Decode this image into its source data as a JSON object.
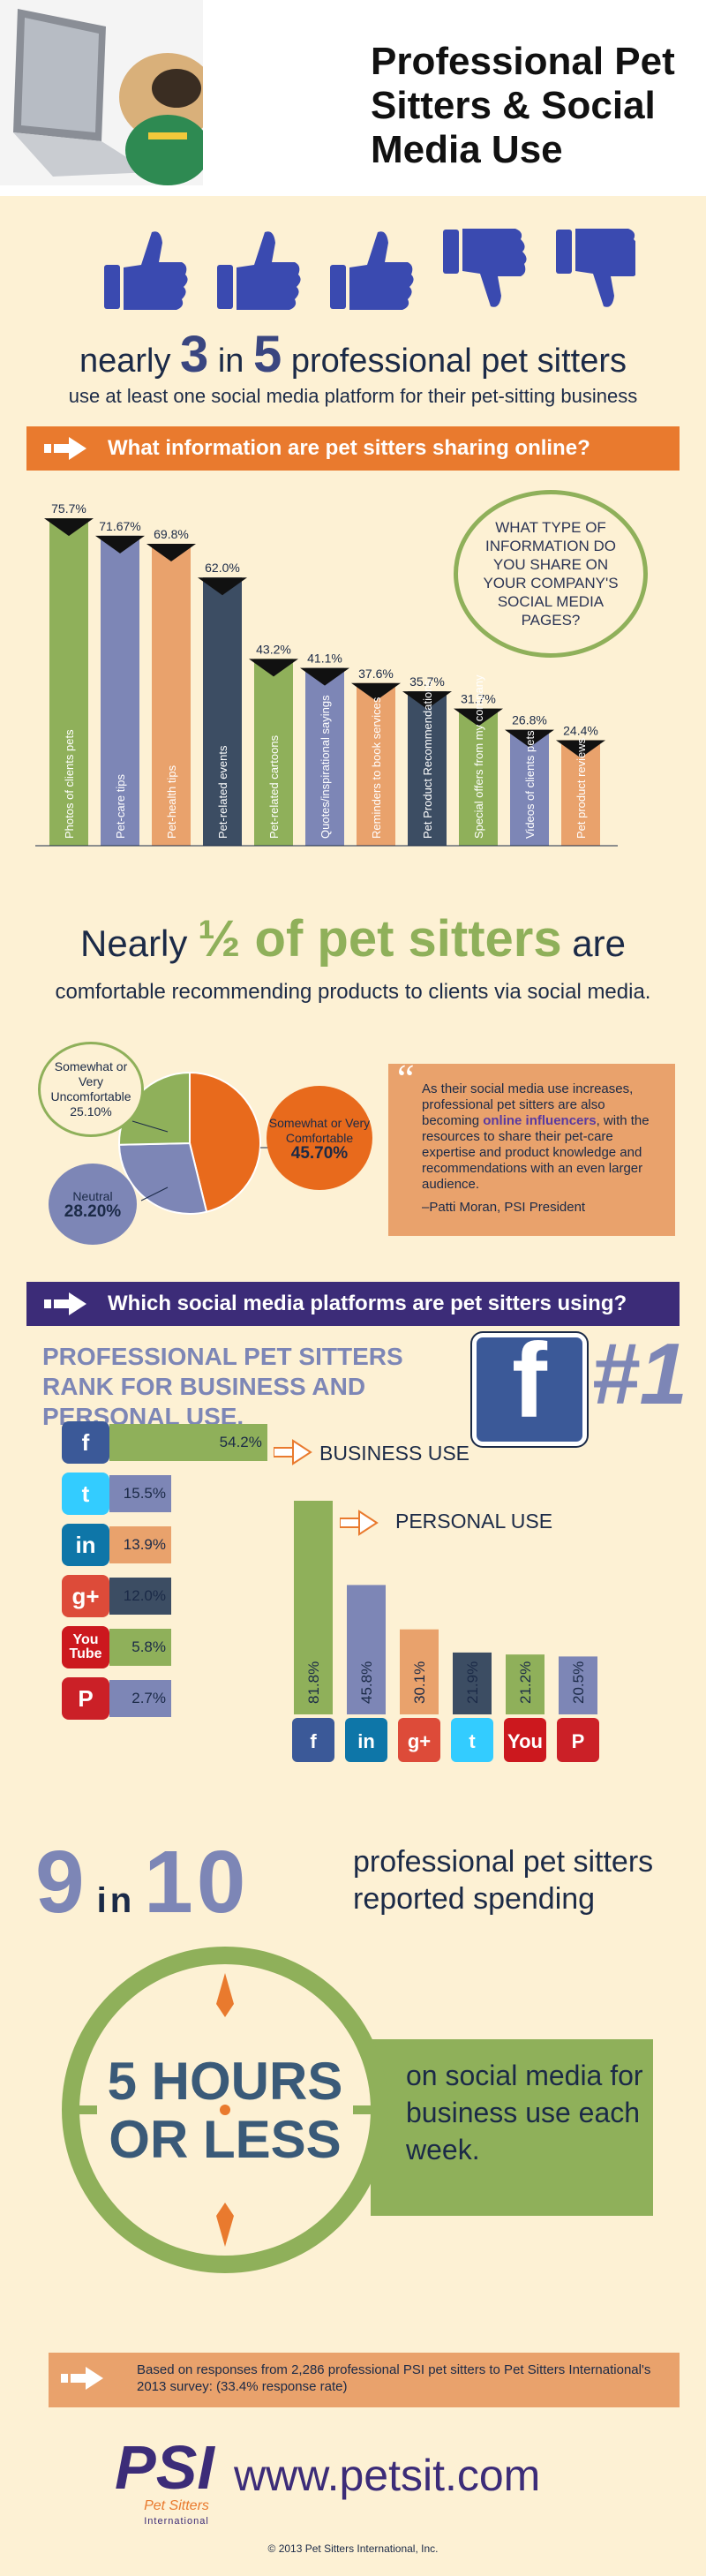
{
  "header": {
    "title": "Professional Pet Sitters & Social Media Use"
  },
  "stat1": {
    "thumbs": [
      "up",
      "up",
      "up",
      "down",
      "down"
    ],
    "prefix": "nearly",
    "num": "3",
    "in": "in",
    "den": "5",
    "suffix": "professional pet sitters",
    "subline": "use at least one social media platform for their pet-sitting business"
  },
  "banner1": "What information are pet sitters sharing online?",
  "question": "WHAT TYPE OF INFORMATION DO YOU SHARE ON YOUR COMPANY'S SOCIAL MEDIA PAGES?",
  "half": {
    "nearly": "Nearly",
    "frac": "½ of pet sitters",
    "are": "are",
    "line2": "comfortable recommending products to clients via social media."
  },
  "quote": {
    "mark": "“",
    "before": "As their social media use increases, professional pet sitters are also becoming ",
    "highlight": "online influencers",
    "after": ", with the resources to share their pet-care expertise and product knowledge and recommendations with an even larger audience.",
    "author": "–Patti Moran, PSI President"
  },
  "banner2": "Which social media platforms are pet sitters using?",
  "rank": {
    "text": "PROFESSIONAL PET SITTERS RANK FOR BUSINESS AND PERSONAL USE.",
    "fb": "f",
    "number": "#1"
  },
  "legend": {
    "business": "BUSINESS USE",
    "personal": "PERSONAL USE"
  },
  "platform_icons": {
    "facebook": "f",
    "twitter": "t",
    "linkedin": "in",
    "googleplus": "g+",
    "youtube_you": "You",
    "youtube_tube": "Tube",
    "pinterest": "P",
    "pinterest_label": "Pinterest"
  },
  "nine": {
    "big1": "9",
    "in": "in",
    "big2": "10",
    "text": "professional pet sitters reported spending",
    "hours": "5 HOURS OR LESS",
    "hours_line1": "5 HOURS",
    "hours_line2": "OR LESS",
    "after": "on social media for business use each week."
  },
  "footer": {
    "note": "Based on responses from 2,286 professional PSI pet sitters to Pet Sitters International's 2013 survey: (33.4% response rate)",
    "logo": "PSI",
    "logo_sub": "Pet Sitters",
    "logo_sub2": "International",
    "url": "www.petsit.com",
    "copyright": "© 2013 Pet Sitters International, Inc."
  },
  "colors": {
    "green": "#8fb05a",
    "purple_gray": "#7d86b6",
    "orange": "#e9a26c",
    "navy": "#3c4d63",
    "banner_orange": "#e97a2e",
    "banner_purple": "#3c2c78",
    "background": "#fdf1d4"
  },
  "chart_data": [
    {
      "type": "bar",
      "title": "What information are pet sitters sharing online?",
      "categories": [
        "Photos of clients pets",
        "Pet-care tips",
        "Pet-health tips",
        "Pet-related events",
        "Pet-related cartoons",
        "Quotes/inspirational sayings",
        "Reminders to book services",
        "Pet Product Recommendations",
        "Special offers from my company",
        "Videos of clients pets",
        "Pet product reviews"
      ],
      "values": [
        75.7,
        71.67,
        69.8,
        62.0,
        43.2,
        41.1,
        37.6,
        35.7,
        31.7,
        26.8,
        24.4
      ],
      "labels": [
        "75.7%",
        "71.67%",
        "69.8%",
        "62.0%",
        "43.2%",
        "41.1%",
        "37.6%",
        "35.7%",
        "31.7%",
        "26.8%",
        "24.4%"
      ],
      "colors": [
        "#8fb05a",
        "#7d86b6",
        "#e9a26c",
        "#3c4d63",
        "#8fb05a",
        "#7d86b6",
        "#e9a26c",
        "#3c4d63",
        "#8fb05a",
        "#7d86b6",
        "#e9a26c"
      ]
    },
    {
      "type": "pie",
      "categories": [
        "Somewhat or Very Comfortable",
        "Neutral",
        "Somewhat or Very Uncomfortable"
      ],
      "values": [
        45.7,
        28.2,
        25.1
      ],
      "labels": [
        "45.70%",
        "28.20%",
        "25.10%"
      ],
      "colors": [
        "#e86a1c",
        "#7d86b6",
        "#8fb05a"
      ]
    },
    {
      "type": "bar",
      "orientation": "horizontal",
      "title": "BUSINESS USE",
      "categories": [
        "Facebook",
        "Twitter",
        "LinkedIn",
        "Google+",
        "YouTube",
        "Pinterest"
      ],
      "values": [
        54.2,
        15.5,
        13.9,
        12.0,
        5.8,
        2.7
      ],
      "labels": [
        "54.2%",
        "15.5%",
        "13.9%",
        "12.0%",
        "5.8%",
        "2.7%"
      ],
      "colors": [
        "#8fb05a",
        "#7d86b6",
        "#e9a26c",
        "#3c4d63",
        "#8fb05a",
        "#7d86b6"
      ]
    },
    {
      "type": "bar",
      "title": "PERSONAL USE",
      "categories": [
        "Facebook",
        "LinkedIn",
        "Google+",
        "Twitter",
        "YouTube",
        "Pinterest"
      ],
      "values": [
        81.8,
        45.8,
        30.1,
        21.9,
        21.2,
        20.5
      ],
      "labels": [
        "81.8%",
        "45.8%",
        "30.1%",
        "21.9%",
        "21.2%",
        "20.5%"
      ],
      "colors": [
        "#8fb05a",
        "#7d86b6",
        "#e9a26c",
        "#3c4d63",
        "#8fb05a",
        "#7d86b6"
      ]
    }
  ]
}
